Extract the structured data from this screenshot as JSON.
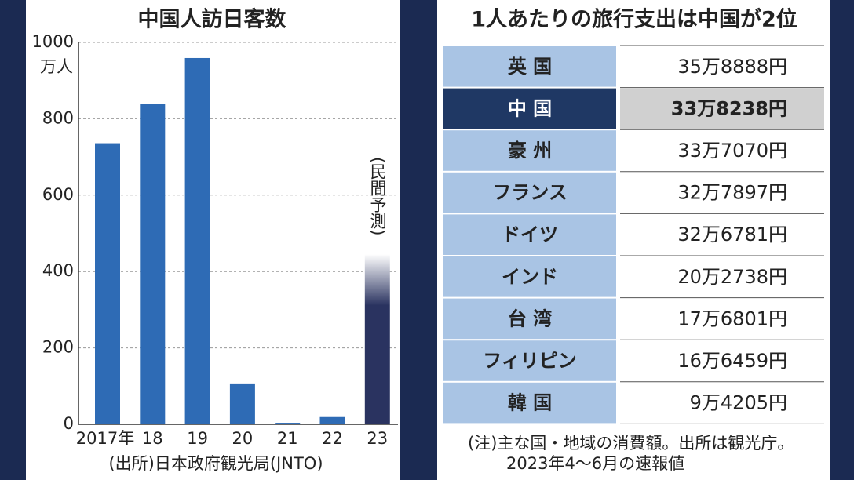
{
  "chart_data": {
    "type": "bar",
    "title": "中国人訪日客数",
    "y_label": "万人",
    "categories": [
      "2017年",
      "18",
      "19",
      "20",
      "21",
      "22",
      "23"
    ],
    "values": [
      736,
      838,
      959,
      107,
      4,
      19,
      445
    ],
    "colors": [
      "#2e6bb5",
      "#2e6bb5",
      "#2e6bb5",
      "#2e6bb5",
      "#2e6bb5",
      "#2e6bb5",
      "#2a3360"
    ],
    "annotation": "(民間予測)",
    "source": "(出所)日本政府観光局(JNTO)",
    "ylim": [
      0,
      1000
    ],
    "yticks": [
      0,
      200,
      400,
      600,
      800,
      1000
    ],
    "grid": true
  },
  "table": {
    "title": "1人あたりの旅行支出は中国が2位",
    "rows": [
      [
        "英 国",
        "35万8888円"
      ],
      [
        "中 国",
        "33万8238円"
      ],
      [
        "豪 州",
        "33万7070円"
      ],
      [
        "フランス",
        "32万7897円"
      ],
      [
        "ドイツ",
        "32万6781円"
      ],
      [
        "インド",
        "20万2738円"
      ],
      [
        "台 湾",
        "17万6801円"
      ],
      [
        "フィリピン",
        "16万6459円"
      ],
      [
        "韓 国",
        "9万4205円"
      ]
    ],
    "notes": [
      "(注)主な国・地域の消費額。出所は観光庁。",
      "2023年4～6月の速報値"
    ]
  }
}
